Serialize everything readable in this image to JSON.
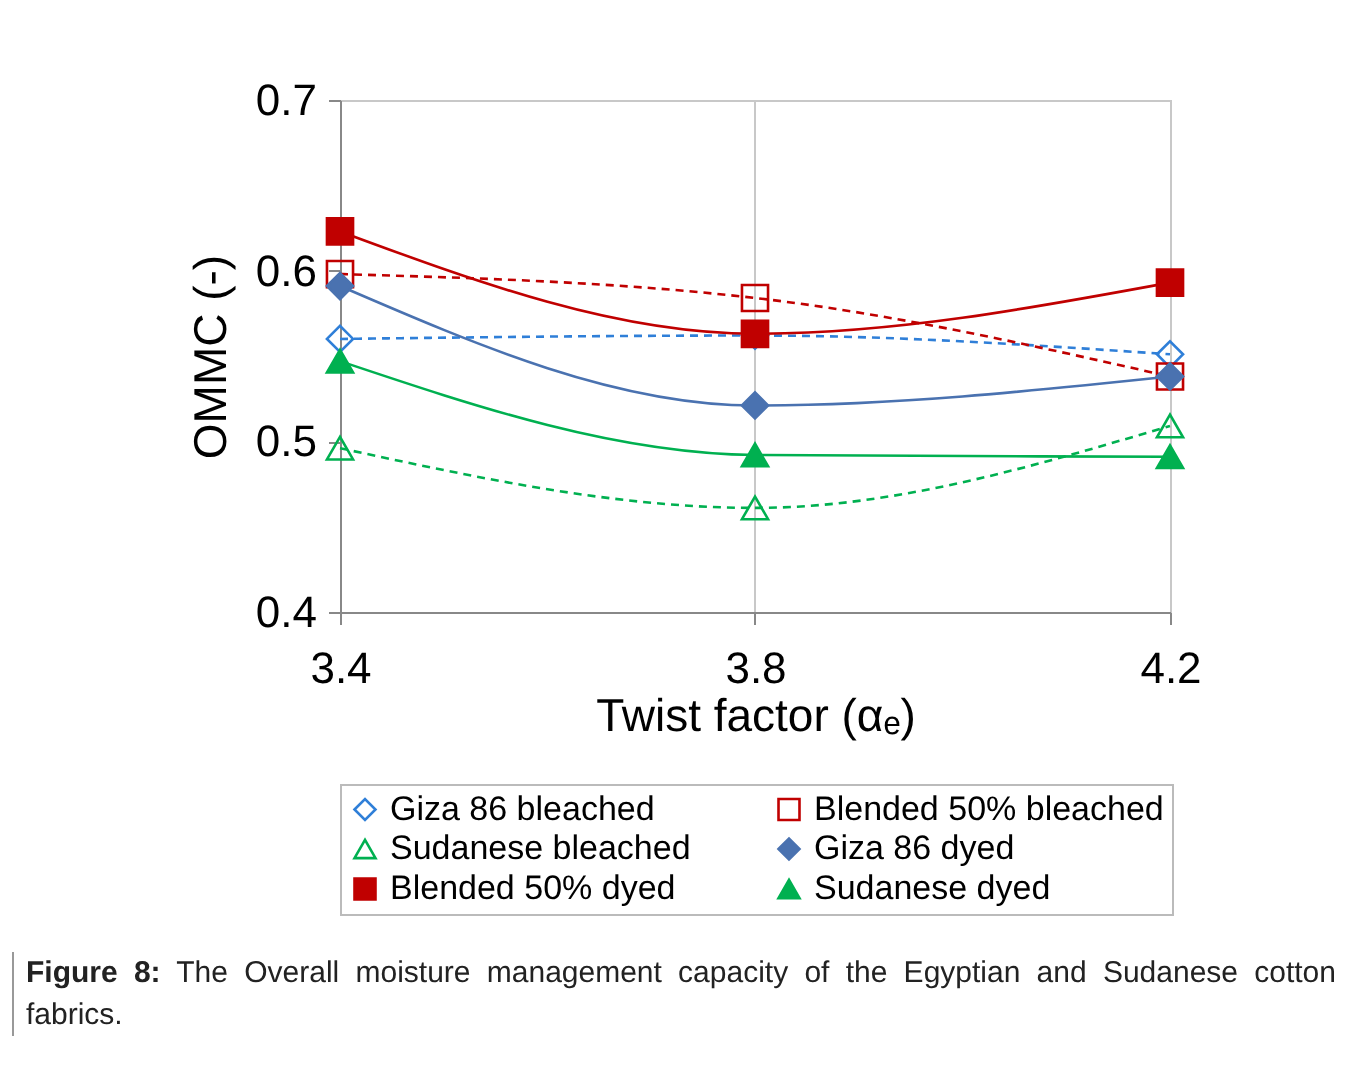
{
  "chart_data": {
    "type": "line",
    "xlabel": "Twist factor (αₑ)",
    "ylabel": "OMMC (-)",
    "x": [
      3.4,
      3.8,
      4.2
    ],
    "xlim": [
      3.4,
      4.2
    ],
    "xticks": [
      3.4,
      3.8,
      4.2
    ],
    "ylim": [
      0.4,
      0.7
    ],
    "yticks": [
      0.4,
      0.5,
      0.6,
      0.7
    ],
    "grid": "x",
    "legend": "bottom",
    "series": [
      {
        "name": "Giza  86 bleached",
        "color": "#2f7fd8",
        "values": [
          0.56,
          0.562,
          0.551
        ],
        "marker": "diamond",
        "line_style": "dashed"
      },
      {
        "name": "Blended 50% bleached",
        "color": "#c00000",
        "values": [
          0.598,
          0.584,
          0.538
        ],
        "marker": "square",
        "line_style": "dashed"
      },
      {
        "name": "Sudanese bleached",
        "color": "#00b050",
        "values": [
          0.496,
          0.461,
          0.509
        ],
        "marker": "triangle",
        "line_style": "dashed"
      },
      {
        "name": "Giza  86 dyed",
        "color": "#4a72b0",
        "values": [
          0.591,
          0.521,
          0.538
        ],
        "marker": "diamond",
        "line_style": "solid"
      },
      {
        "name": "Blended 50% dyed",
        "color": "#c00000",
        "values": [
          0.623,
          0.563,
          0.593
        ],
        "marker": "square",
        "line_style": "solid"
      },
      {
        "name": "Sudanese dyed",
        "color": "#00b050",
        "values": [
          0.547,
          0.492,
          0.491
        ],
        "marker": "triangle",
        "line_style": "solid"
      }
    ],
    "annotations": [
      "Figure 8: The Overall moisture management capacity of the Egyptian and Sudanese cotton fabrics."
    ]
  }
}
